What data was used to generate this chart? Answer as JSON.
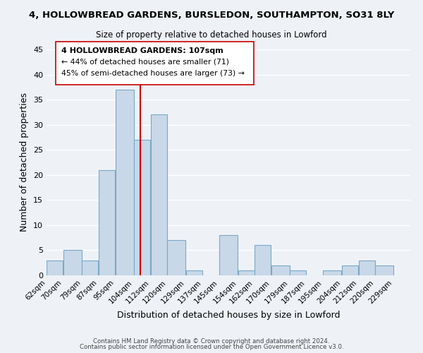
{
  "title": "4, HOLLOWBREAD GARDENS, BURSLEDON, SOUTHAMPTON, SO31 8LY",
  "subtitle": "Size of property relative to detached houses in Lowford",
  "xlabel": "Distribution of detached houses by size in Lowford",
  "ylabel": "Number of detached properties",
  "bar_color": "#c8d8e8",
  "bar_edge_color": "#7aa8c8",
  "bar_left_edges": [
    62,
    70,
    79,
    87,
    95,
    104,
    112,
    120,
    129,
    137,
    145,
    154,
    162,
    170,
    179,
    187,
    195,
    204,
    212,
    220
  ],
  "bar_widths": [
    8,
    9,
    8,
    8,
    9,
    8,
    8,
    9,
    8,
    8,
    9,
    8,
    8,
    9,
    8,
    8,
    9,
    8,
    8,
    9
  ],
  "bar_heights": [
    3,
    5,
    3,
    21,
    37,
    27,
    32,
    7,
    1,
    0,
    8,
    1,
    6,
    2,
    1,
    0,
    1,
    2,
    3,
    2
  ],
  "tick_labels": [
    "62sqm",
    "70sqm",
    "79sqm",
    "87sqm",
    "95sqm",
    "104sqm",
    "112sqm",
    "120sqm",
    "129sqm",
    "137sqm",
    "145sqm",
    "154sqm",
    "162sqm",
    "170sqm",
    "179sqm",
    "187sqm",
    "195sqm",
    "204sqm",
    "212sqm",
    "220sqm",
    "229sqm"
  ],
  "tick_positions": [
    62,
    70,
    79,
    87,
    95,
    104,
    112,
    120,
    129,
    137,
    145,
    154,
    162,
    170,
    179,
    187,
    195,
    204,
    212,
    220,
    229
  ],
  "vline_x": 107,
  "vline_color": "#cc0000",
  "ylim": [
    0,
    45
  ],
  "yticks": [
    0,
    5,
    10,
    15,
    20,
    25,
    30,
    35,
    40,
    45
  ],
  "annotation_title": "4 HOLLOWBREAD GARDENS: 107sqm",
  "annotation_line1": "← 44% of detached houses are smaller (71)",
  "annotation_line2": "45% of semi-detached houses are larger (73) →",
  "footer1": "Contains HM Land Registry data © Crown copyright and database right 2024.",
  "footer2": "Contains public sector information licensed under the Open Government Licence v3.0.",
  "background_color": "#eef2f7",
  "grid_color": "#ffffff"
}
